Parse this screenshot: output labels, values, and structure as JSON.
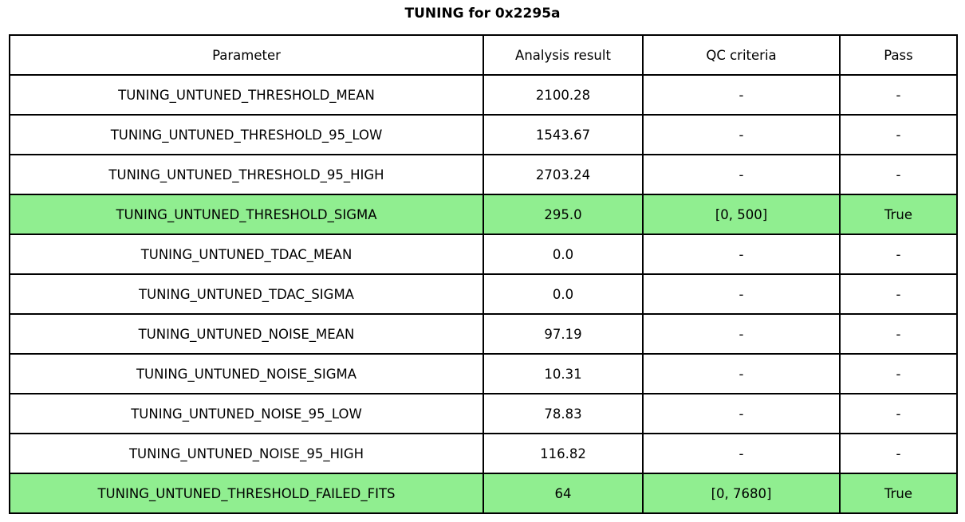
{
  "title": "TUNING for 0x2295a",
  "colors": {
    "pass_row_bg": "#90EE90",
    "border": "#000000",
    "background": "#FFFFFF",
    "text": "#000000"
  },
  "chart_data": {
    "type": "table",
    "title": "TUNING for 0x2295a",
    "columns": [
      "Parameter",
      "Analysis result",
      "QC criteria",
      "Pass"
    ],
    "rows": [
      {
        "parameter": "TUNING_UNTUNED_THRESHOLD_MEAN",
        "analysis_result": "2100.28",
        "qc_criteria": "-",
        "pass": "-",
        "highlighted": false
      },
      {
        "parameter": "TUNING_UNTUNED_THRESHOLD_95_LOW",
        "analysis_result": "1543.67",
        "qc_criteria": "-",
        "pass": "-",
        "highlighted": false
      },
      {
        "parameter": "TUNING_UNTUNED_THRESHOLD_95_HIGH",
        "analysis_result": "2703.24",
        "qc_criteria": "-",
        "pass": "-",
        "highlighted": false
      },
      {
        "parameter": "TUNING_UNTUNED_THRESHOLD_SIGMA",
        "analysis_result": "295.0",
        "qc_criteria": "[0, 500]",
        "pass": "True",
        "highlighted": true
      },
      {
        "parameter": "TUNING_UNTUNED_TDAC_MEAN",
        "analysis_result": "0.0",
        "qc_criteria": "-",
        "pass": "-",
        "highlighted": false
      },
      {
        "parameter": "TUNING_UNTUNED_TDAC_SIGMA",
        "analysis_result": "0.0",
        "qc_criteria": "-",
        "pass": "-",
        "highlighted": false
      },
      {
        "parameter": "TUNING_UNTUNED_NOISE_MEAN",
        "analysis_result": "97.19",
        "qc_criteria": "-",
        "pass": "-",
        "highlighted": false
      },
      {
        "parameter": "TUNING_UNTUNED_NOISE_SIGMA",
        "analysis_result": "10.31",
        "qc_criteria": "-",
        "pass": "-",
        "highlighted": false
      },
      {
        "parameter": "TUNING_UNTUNED_NOISE_95_LOW",
        "analysis_result": "78.83",
        "qc_criteria": "-",
        "pass": "-",
        "highlighted": false
      },
      {
        "parameter": "TUNING_UNTUNED_NOISE_95_HIGH",
        "analysis_result": "116.82",
        "qc_criteria": "-",
        "pass": "-",
        "highlighted": false
      },
      {
        "parameter": "TUNING_UNTUNED_THRESHOLD_FAILED_FITS",
        "analysis_result": "64",
        "qc_criteria": "[0, 7680]",
        "pass": "True",
        "highlighted": true
      }
    ]
  }
}
